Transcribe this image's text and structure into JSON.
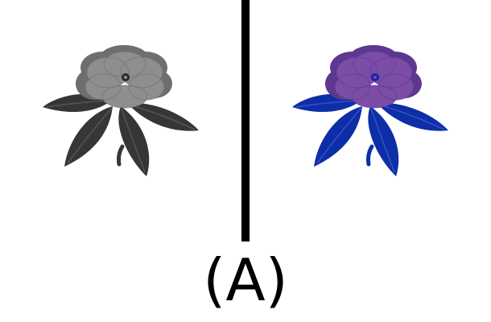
{
  "caption": "(A)",
  "left_image": {
    "icon": "flower-icon",
    "colors": {
      "petals": "#8e8e8e",
      "petal_shadow": "#6e6e6e",
      "leaves": "#363636",
      "leaf_vein": "#555555",
      "center": "#2a2a2a"
    }
  },
  "right_image": {
    "icon": "flower-icon",
    "colors": {
      "petals": "#7b4da6",
      "petal_shadow": "#5d3790",
      "leaves": "#0e2ea8",
      "leaf_vein": "#3550c4",
      "center": "#1a1fb0"
    }
  },
  "divider": {
    "color": "#000000"
  }
}
